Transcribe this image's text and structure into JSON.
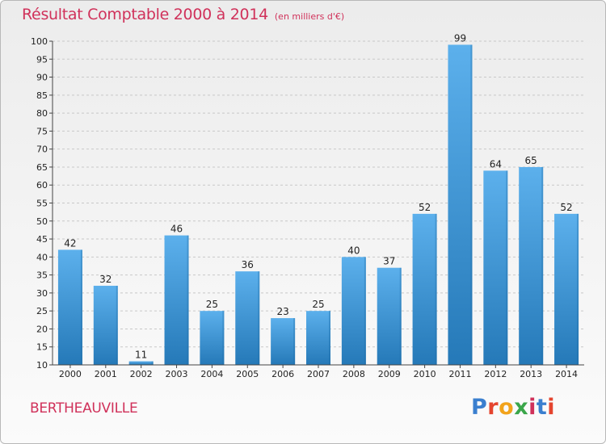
{
  "header": {
    "title": "Résultat Comptable 2000 à 2014",
    "subtitle": "(en milliers d'€)"
  },
  "footer": {
    "commune": "BERTHEAUVILLE",
    "logo_text": "Proxiti",
    "logo_colors": [
      "#3a7fcf",
      "#e5452f",
      "#f2a31b",
      "#3aa64a",
      "#d0315a",
      "#3a7fcf",
      "#e5452f"
    ]
  },
  "colors": {
    "title": "#d0315a",
    "bar_top": "#5cb0ec",
    "bar_bottom": "#2579b8",
    "grid": "#c8c8c8",
    "axis": "#444444",
    "text": "#222222"
  },
  "chart_data": {
    "type": "bar",
    "categories": [
      "2000",
      "2001",
      "2002",
      "2003",
      "2004",
      "2005",
      "2006",
      "2007",
      "2008",
      "2009",
      "2010",
      "2011",
      "2012",
      "2013",
      "2014"
    ],
    "series": [
      {
        "values": [
          42,
          32,
          11,
          46,
          25,
          36,
          23,
          25,
          40,
          37,
          52,
          99,
          64,
          65,
          52
        ]
      }
    ],
    "data_labels": [
      "42",
      "32",
      "11",
      "46",
      "25",
      "36",
      "23",
      "25",
      "40",
      "37",
      "52",
      "99",
      "64",
      "65",
      "52"
    ],
    "yticks": [
      10,
      15,
      20,
      25,
      30,
      35,
      40,
      45,
      50,
      55,
      60,
      65,
      70,
      75,
      80,
      85,
      90,
      95,
      100
    ],
    "ylim": [
      10,
      100
    ],
    "grid": "horizontal dashed",
    "legend": "none"
  }
}
